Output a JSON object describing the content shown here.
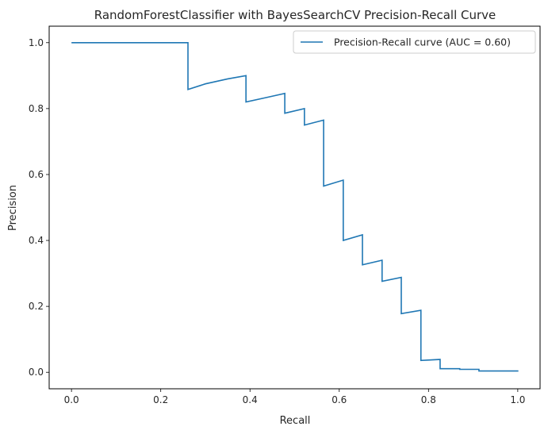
{
  "chart_data": {
    "type": "line",
    "title": "RandomForestClassifier with BayesSearchCV Precision-Recall Curve",
    "xlabel": "Recall",
    "ylabel": "Precision",
    "xlim": [
      -0.05,
      1.05
    ],
    "ylim": [
      -0.05,
      1.05
    ],
    "xticks": [
      0.0,
      0.2,
      0.4,
      0.6,
      0.8,
      1.0
    ],
    "xtick_labels": [
      "0.0",
      "0.2",
      "0.4",
      "0.6",
      "0.8",
      "1.0"
    ],
    "yticks": [
      0.0,
      0.2,
      0.4,
      0.6,
      0.8,
      1.0
    ],
    "ytick_labels": [
      "0.0",
      "0.2",
      "0.4",
      "0.6",
      "0.8",
      "1.0"
    ],
    "grid": false,
    "legend_position": "top-right",
    "series": [
      {
        "name": "Precision-Recall curve (AUC = 0.60)",
        "color": "#1f77b4",
        "x": [
          0.0,
          0.261,
          0.261,
          0.3,
          0.35,
          0.391,
          0.391,
          0.435,
          0.478,
          0.478,
          0.522,
          0.522,
          0.565,
          0.565,
          0.609,
          0.609,
          0.652,
          0.652,
          0.696,
          0.696,
          0.739,
          0.739,
          0.783,
          0.783,
          0.826,
          0.826,
          0.87,
          0.87,
          0.913,
          0.913,
          0.957,
          1.0,
          1.0
        ],
        "y": [
          1.0,
          1.0,
          0.858,
          0.875,
          0.89,
          0.9,
          0.82,
          0.833,
          0.846,
          0.786,
          0.8,
          0.75,
          0.765,
          0.565,
          0.583,
          0.4,
          0.417,
          0.326,
          0.34,
          0.276,
          0.288,
          0.178,
          0.188,
          0.036,
          0.039,
          0.011,
          0.011,
          0.009,
          0.009,
          0.004,
          0.004,
          0.004,
          0.002
        ]
      }
    ]
  }
}
